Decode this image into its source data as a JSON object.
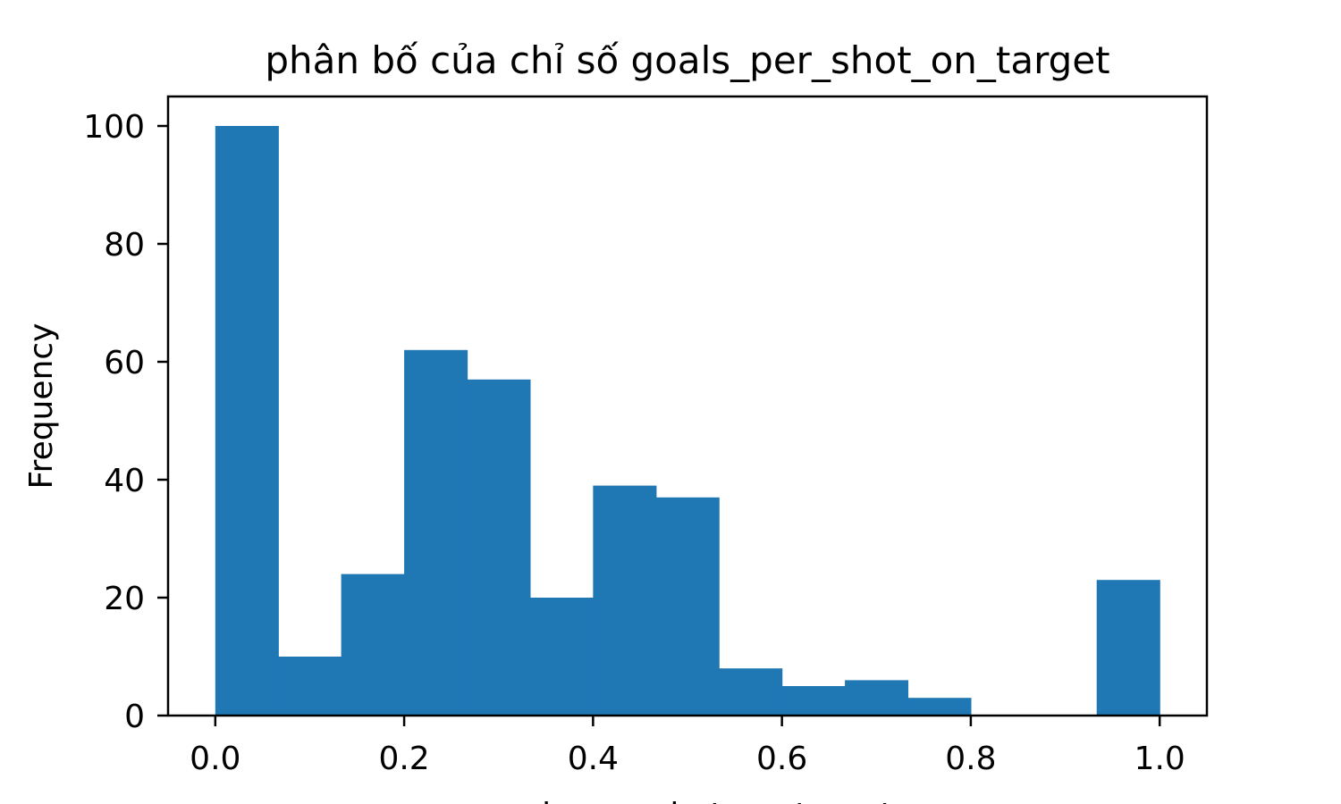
{
  "chart_data": {
    "type": "bar",
    "title": "phân bố của chỉ số goals_per_shot_on_target",
    "xlabel": "goals_per_shot_on_target",
    "ylabel": "Frequency",
    "bin_edges": [
      0.0,
      0.0667,
      0.1333,
      0.2,
      0.2667,
      0.3333,
      0.4,
      0.4667,
      0.5333,
      0.6,
      0.6667,
      0.7333,
      0.8,
      0.8667,
      0.9333,
      1.0
    ],
    "values": [
      100,
      10,
      24,
      62,
      57,
      20,
      39,
      37,
      8,
      5,
      6,
      3,
      0,
      0,
      23
    ],
    "xlim": [
      -0.05,
      1.05
    ],
    "ylim": [
      0,
      105
    ],
    "xticks": [
      0.0,
      0.2,
      0.4,
      0.6,
      0.8,
      1.0
    ],
    "xtick_labels": [
      "0.0",
      "0.2",
      "0.4",
      "0.6",
      "0.8",
      "1.0"
    ],
    "yticks": [
      0,
      20,
      40,
      60,
      80,
      100
    ],
    "ytick_labels": [
      "0",
      "20",
      "40",
      "60",
      "80",
      "100"
    ],
    "grid": false,
    "bar_color": "#1f77b4"
  }
}
